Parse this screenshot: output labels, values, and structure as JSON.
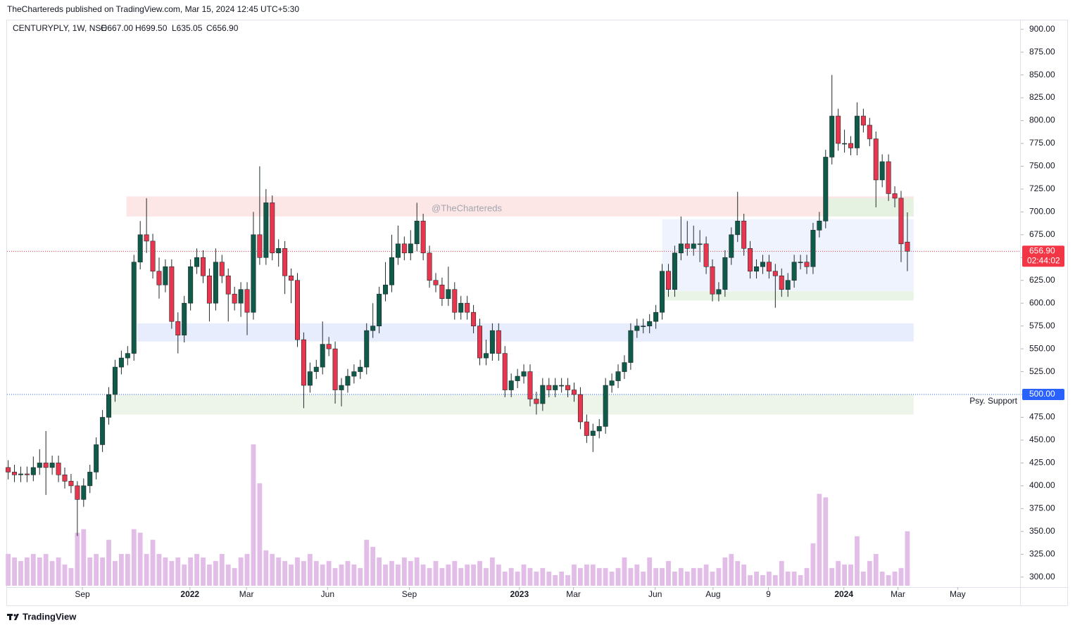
{
  "header": "TheChartereds published on TradingView.com, Mar 15, 2024 12:45 UTC+5:30",
  "footer": "TradingView",
  "chart_data": {
    "type": "candlestick",
    "symbol": "CENTURYPLY, 1W, NSE",
    "ohlc_labels": [
      "O667.00",
      "H699.50",
      "L635.05",
      "C656.90"
    ],
    "watermark": "@TheChartereds",
    "up_color": "#0f5a49",
    "down_color": "#e8364e",
    "volume_color": "#e2bde8",
    "open": [
      420,
      415,
      412,
      413,
      412,
      420,
      425,
      420,
      425,
      412,
      405,
      400,
      385,
      400,
      415,
      445,
      475,
      500,
      530,
      540,
      545,
      645,
      675,
      668,
      635,
      620,
      640,
      580,
      565,
      600,
      640,
      650,
      630,
      600,
      645,
      630,
      610,
      600,
      615,
      590,
      675,
      650,
      710,
      655,
      660,
      630,
      625,
      560,
      510,
      525,
      530,
      555,
      550,
      505,
      510,
      520,
      525,
      530,
      570,
      575,
      610,
      620,
      650,
      665,
      655,
      665,
      690,
      655,
      625,
      620,
      605,
      615,
      590,
      600,
      590,
      575,
      540,
      545,
      570,
      545,
      505,
      515,
      520,
      525,
      495,
      490,
      510,
      505,
      510,
      510,
      505,
      500,
      470,
      455,
      460,
      465,
      510,
      515,
      525,
      535,
      570,
      575,
      575,
      580,
      590,
      635,
      615,
      655,
      665,
      660,
      665,
      665,
      640,
      610,
      615,
      650,
      675,
      690,
      660,
      635,
      640,
      645,
      635,
      630,
      615,
      625,
      645,
      645,
      640,
      680,
      690,
      760,
      805,
      775,
      775,
      770,
      805,
      795,
      780,
      735,
      755,
      720,
      715,
      667
    ],
    "high": [
      428,
      423,
      421,
      421,
      432,
      440,
      460,
      433,
      433,
      420,
      413,
      405,
      408,
      423,
      453,
      483,
      508,
      538,
      548,
      553,
      653,
      690,
      715,
      676,
      650,
      648,
      648,
      590,
      608,
      648,
      660,
      658,
      638,
      660,
      653,
      638,
      618,
      623,
      623,
      700,
      750,
      725,
      718,
      670,
      668,
      638,
      633,
      568,
      535,
      538,
      580,
      563,
      558,
      518,
      528,
      533,
      538,
      578,
      600,
      618,
      645,
      675,
      685,
      673,
      680,
      710,
      698,
      663,
      633,
      628,
      640,
      623,
      608,
      608,
      598,
      583,
      560,
      578,
      578,
      553,
      523,
      528,
      533,
      533,
      503,
      518,
      518,
      518,
      518,
      518,
      513,
      508,
      478,
      468,
      473,
      518,
      523,
      533,
      543,
      578,
      583,
      583,
      588,
      598,
      643,
      643,
      663,
      695,
      690,
      685,
      680,
      673,
      648,
      623,
      658,
      683,
      722,
      698,
      668,
      648,
      653,
      653,
      643,
      638,
      633,
      653,
      653,
      653,
      688,
      700,
      768,
      850,
      813,
      790,
      783,
      820,
      813,
      803,
      788,
      763,
      763,
      728,
      723,
      699.5
    ],
    "low": [
      407,
      404,
      404,
      404,
      405,
      412,
      390,
      412,
      404,
      397,
      392,
      345,
      377,
      392,
      407,
      437,
      467,
      492,
      522,
      532,
      537,
      637,
      655,
      627,
      605,
      612,
      572,
      545,
      557,
      592,
      632,
      622,
      580,
      592,
      622,
      580,
      592,
      585,
      565,
      582,
      642,
      642,
      647,
      640,
      610,
      600,
      552,
      485,
      502,
      517,
      522,
      542,
      490,
      487,
      502,
      512,
      517,
      522,
      562,
      567,
      602,
      612,
      642,
      647,
      647,
      657,
      647,
      617,
      612,
      597,
      597,
      582,
      582,
      582,
      567,
      532,
      532,
      537,
      537,
      497,
      497,
      507,
      512,
      487,
      478,
      482,
      497,
      497,
      502,
      497,
      492,
      462,
      447,
      437,
      452,
      457,
      502,
      507,
      517,
      527,
      562,
      567,
      567,
      572,
      582,
      607,
      607,
      647,
      652,
      652,
      645,
      632,
      602,
      602,
      607,
      642,
      667,
      652,
      627,
      627,
      632,
      627,
      595,
      607,
      607,
      617,
      637,
      632,
      632,
      672,
      682,
      752,
      767,
      765,
      762,
      762,
      787,
      772,
      705,
      727,
      712,
      705,
      645,
      635.05
    ],
    "close": [
      415,
      412,
      413,
      412,
      420,
      425,
      420,
      425,
      412,
      405,
      400,
      385,
      400,
      415,
      445,
      475,
      500,
      530,
      540,
      545,
      645,
      675,
      668,
      635,
      620,
      640,
      580,
      565,
      600,
      640,
      650,
      630,
      600,
      645,
      630,
      610,
      600,
      615,
      590,
      675,
      650,
      710,
      655,
      660,
      630,
      625,
      560,
      510,
      525,
      530,
      555,
      550,
      505,
      510,
      520,
      525,
      530,
      570,
      575,
      610,
      620,
      650,
      665,
      655,
      665,
      690,
      655,
      625,
      620,
      605,
      615,
      590,
      600,
      590,
      575,
      540,
      545,
      570,
      545,
      505,
      515,
      520,
      525,
      495,
      490,
      510,
      505,
      510,
      510,
      505,
      500,
      470,
      455,
      460,
      465,
      510,
      515,
      525,
      535,
      570,
      575,
      575,
      580,
      590,
      635,
      615,
      655,
      665,
      660,
      665,
      665,
      640,
      610,
      615,
      650,
      675,
      690,
      660,
      635,
      640,
      645,
      635,
      630,
      615,
      625,
      645,
      645,
      640,
      680,
      690,
      760,
      805,
      775,
      775,
      770,
      805,
      795,
      780,
      735,
      755,
      720,
      715,
      665,
      656.9
    ],
    "volume": [
      45,
      40,
      35,
      40,
      45,
      40,
      45,
      35,
      40,
      30,
      25,
      75,
      80,
      40,
      45,
      40,
      65,
      35,
      45,
      45,
      80,
      75,
      45,
      65,
      45,
      40,
      35,
      40,
      30,
      40,
      45,
      40,
      30,
      35,
      45,
      30,
      25,
      40,
      45,
      200,
      145,
      50,
      45,
      40,
      35,
      30,
      40,
      35,
      45,
      35,
      30,
      35,
      25,
      30,
      35,
      30,
      25,
      65,
      55,
      40,
      30,
      35,
      30,
      40,
      35,
      40,
      30,
      25,
      35,
      25,
      30,
      35,
      25,
      30,
      30,
      35,
      25,
      40,
      30,
      20,
      25,
      20,
      30,
      25,
      20,
      25,
      20,
      15,
      20,
      15,
      30,
      25,
      30,
      30,
      25,
      25,
      20,
      25,
      40,
      25,
      30,
      20,
      40,
      25,
      25,
      35,
      20,
      25,
      20,
      25,
      25,
      30,
      20,
      25,
      40,
      45,
      35,
      30,
      15,
      20,
      15,
      20,
      15,
      35,
      20,
      20,
      15,
      25,
      60,
      130,
      125,
      25,
      35,
      30,
      30,
      70,
      20,
      35,
      45,
      20,
      15,
      20,
      25,
      77
    ],
    "xlim": [
      -1.3,
      160.7
    ],
    "xticks": [
      {
        "value": 11.8,
        "label": "Sep"
      },
      {
        "value": 28.9,
        "label": "2022"
      },
      {
        "value": 37.9,
        "label": "Mar"
      },
      {
        "value": 50.8,
        "label": "Jun"
      },
      {
        "value": 63.8,
        "label": "Sep"
      },
      {
        "value": 81.3,
        "label": "2023"
      },
      {
        "value": 89.9,
        "label": "Mar"
      },
      {
        "value": 102.9,
        "label": "Jun"
      },
      {
        "value": 112.1,
        "label": "Aug"
      },
      {
        "value": 120.9,
        "label": "9"
      },
      {
        "value": 132.9,
        "label": "2024"
      },
      {
        "value": 141.5,
        "label": "Mar"
      },
      {
        "value": 151,
        "label": "May"
      }
    ],
    "ylim": [
      289,
      909
    ],
    "yticks": [
      {
        "value": 300,
        "label": "300.00"
      },
      {
        "value": 325,
        "label": "325.00"
      },
      {
        "value": 350,
        "label": "350.00"
      },
      {
        "value": 375,
        "label": "375.00"
      },
      {
        "value": 400,
        "label": "400.00"
      },
      {
        "value": 425,
        "label": "425.00"
      },
      {
        "value": 450,
        "label": "450.00"
      },
      {
        "value": 475,
        "label": "475.00"
      },
      {
        "value": 500,
        "label": "500.00"
      },
      {
        "value": 525,
        "label": "525.00"
      },
      {
        "value": 550,
        "label": "550.00"
      },
      {
        "value": 575,
        "label": "575.00"
      },
      {
        "value": 600,
        "label": "600.00"
      },
      {
        "value": 625,
        "label": "625.00"
      },
      {
        "value": 650,
        "label": "650.00"
      },
      {
        "value": 675,
        "label": "675.00"
      },
      {
        "value": 700,
        "label": "700.00"
      },
      {
        "value": 725,
        "label": "725.00"
      },
      {
        "value": 750,
        "label": "750.00"
      },
      {
        "value": 775,
        "label": "775.00"
      },
      {
        "value": 800,
        "label": "800.00"
      },
      {
        "value": 825,
        "label": "825.00"
      },
      {
        "value": 850,
        "label": "850.00"
      },
      {
        "value": 875,
        "label": "875.00"
      },
      {
        "value": 900,
        "label": "900.00"
      }
    ],
    "zones": [
      {
        "from": 18.8,
        "to": 144,
        "low": 695,
        "high": 717,
        "color": "#fde6e6"
      },
      {
        "from": 20.5,
        "to": 144,
        "low": 558,
        "high": 578,
        "color": "#e7edfd"
      },
      {
        "from": 16.3,
        "to": 144,
        "low": 478,
        "high": 500,
        "color": "#edf5eb"
      },
      {
        "from": 104,
        "to": 144,
        "low": 613,
        "high": 692,
        "color": "#eff3fe"
      },
      {
        "from": 104,
        "to": 144,
        "low": 603,
        "high": 613,
        "color": "#e9f4e6"
      },
      {
        "from": 130,
        "to": 144,
        "low": 695,
        "high": 715,
        "color": "#e5f2e2"
      }
    ],
    "last_price": {
      "value": 656.9,
      "label": "656.90",
      "countdown": "02:44:02",
      "color": "#f23645"
    },
    "support": {
      "value": 500,
      "label": "500.00",
      "name": "Psy. Support",
      "color": "#2962ff"
    }
  }
}
